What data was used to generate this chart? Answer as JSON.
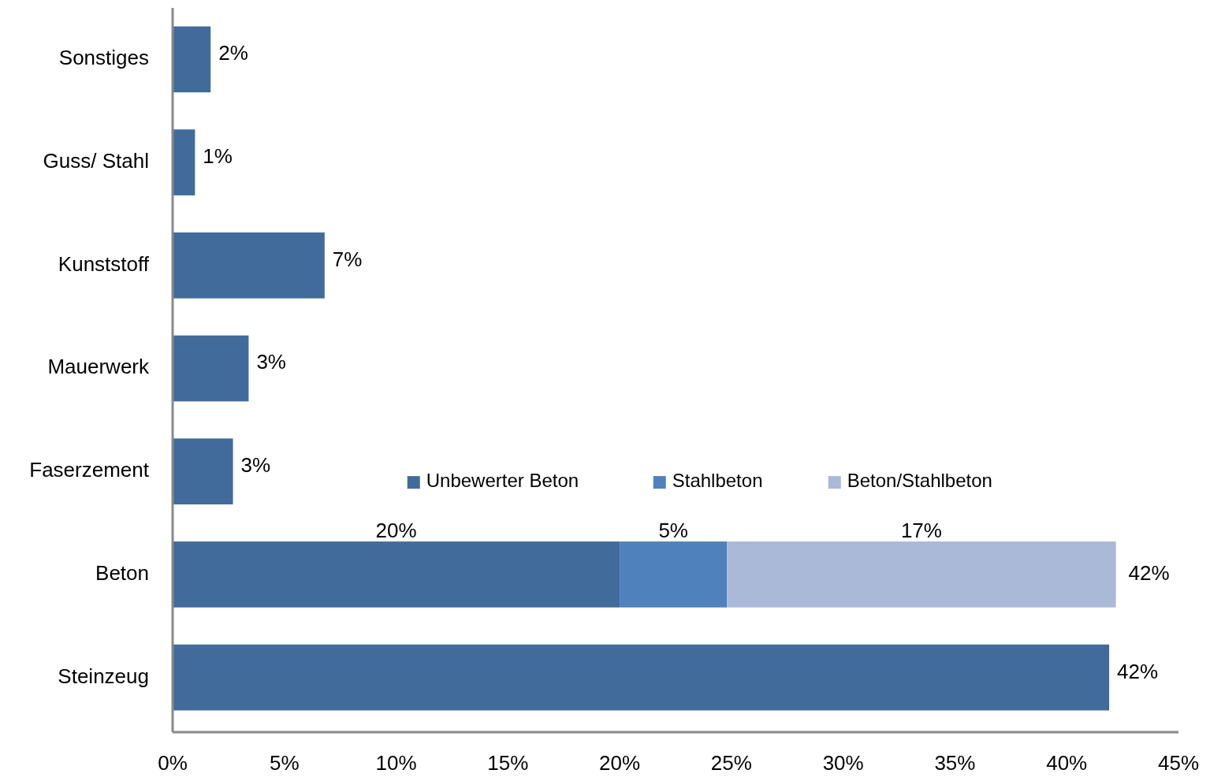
{
  "chart_data": {
    "type": "bar",
    "orientation": "horizontal",
    "stacked": true,
    "categories": [
      "Sonstiges",
      "Guss/ Stahl",
      "Kunststoff",
      "Mauerwerk",
      "Faserzement",
      "Beton",
      "Steinzeug"
    ],
    "series": [
      {
        "name": "Unbewerter Beton",
        "color": "#416b9b",
        "values": [
          1.7,
          1.0,
          6.8,
          3.4,
          2.7,
          20.0,
          41.9
        ],
        "value_labels": [
          "2%",
          "1%",
          "7%",
          "3%",
          "3%",
          "20%",
          "42%"
        ]
      },
      {
        "name": "Stahlbeton",
        "color": "#4f81bd",
        "values": [
          null,
          null,
          null,
          null,
          null,
          4.8,
          null
        ],
        "value_labels": [
          null,
          null,
          null,
          null,
          null,
          "5%",
          null
        ]
      },
      {
        "name": "Beton/Stahlbeton",
        "color": "#aab9d7",
        "values": [
          null,
          null,
          null,
          null,
          null,
          17.4,
          null
        ],
        "value_labels": [
          null,
          null,
          null,
          null,
          null,
          "17%",
          null
        ]
      }
    ],
    "totals": [
      null,
      null,
      null,
      null,
      null,
      "42%",
      null
    ],
    "xlim": [
      0,
      45
    ],
    "xticks": [
      {
        "value": 0,
        "label": "0%"
      },
      {
        "value": 5,
        "label": "5%"
      },
      {
        "value": 10,
        "label": "10%"
      },
      {
        "value": 15,
        "label": "15%"
      },
      {
        "value": 20,
        "label": "20%"
      },
      {
        "value": 25,
        "label": "25%"
      },
      {
        "value": 30,
        "label": "30%"
      },
      {
        "value": 35,
        "label": "35%"
      },
      {
        "value": 40,
        "label": "40%"
      },
      {
        "value": 45,
        "label": "45%"
      }
    ],
    "grid": false,
    "legend": "bottom right"
  }
}
